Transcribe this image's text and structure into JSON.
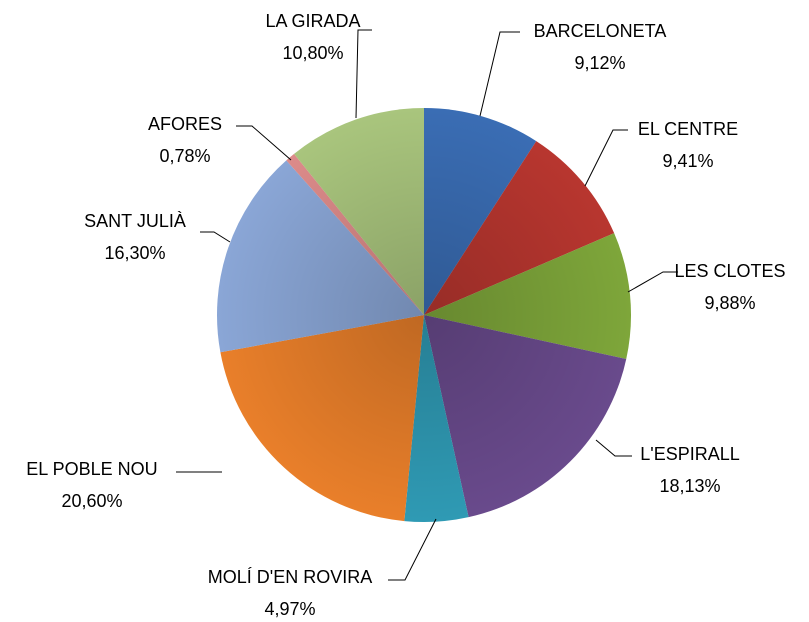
{
  "chart_data": {
    "type": "pie",
    "categories": [
      "BARCELONETA",
      "EL CENTRE",
      "LES CLOTES",
      "L'ESPIRALL",
      "MOLÍ D'EN ROVIRA",
      "EL POBLE NOU",
      "SANT JULIÀ",
      "AFORES",
      "LA GIRADA"
    ],
    "values": [
      9.12,
      9.41,
      9.88,
      18.13,
      4.97,
      20.6,
      16.3,
      0.78,
      10.8
    ],
    "value_labels": [
      "9,12%",
      "9,41%",
      "9,88%",
      "18,13%",
      "4,97%",
      "20,60%",
      "16,30%",
      "0,78%",
      "10,80%"
    ],
    "colors": [
      "#3a6db4",
      "#b8362f",
      "#7ea63a",
      "#694a8c",
      "#2f9ab4",
      "#e97f2a",
      "#8aa6d6",
      "#dc8b8a",
      "#a9c57d"
    ]
  }
}
